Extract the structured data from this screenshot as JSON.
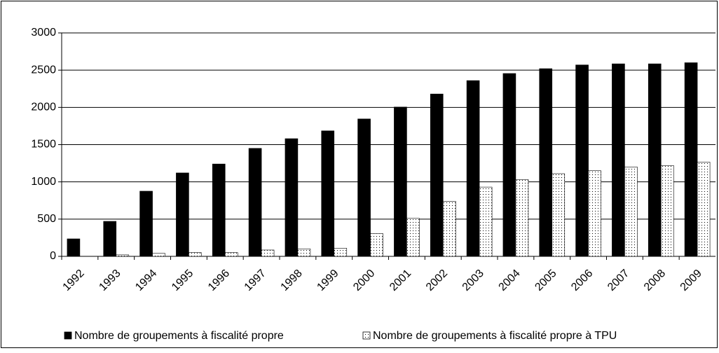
{
  "chart_data": {
    "type": "bar",
    "categories": [
      "1992",
      "1993",
      "1994",
      "1995",
      "1996",
      "1997",
      "1998",
      "1999",
      "2000",
      "2001",
      "2002",
      "2003",
      "2004",
      "2005",
      "2006",
      "2007",
      "2008",
      "2009"
    ],
    "series": [
      {
        "name": "Nombre de groupements à fiscalité propre",
        "color": "#000000",
        "values": [
          235,
          470,
          875,
          1120,
          1240,
          1450,
          1580,
          1685,
          1845,
          2005,
          2180,
          2360,
          2455,
          2520,
          2570,
          2585,
          2585,
          2600
        ]
      },
      {
        "name": "Nombre de groupements à fiscalité propre à TPU",
        "color": "#ffffff",
        "values": [
          0,
          20,
          40,
          50,
          50,
          85,
          100,
          110,
          305,
          510,
          740,
          930,
          1030,
          1110,
          1150,
          1200,
          1220,
          1265
        ]
      }
    ],
    "ylim": [
      0,
      3000
    ],
    "yticks": [
      0,
      500,
      1000,
      1500,
      2000,
      2500,
      3000
    ],
    "grid": true,
    "legend": "bottom"
  }
}
